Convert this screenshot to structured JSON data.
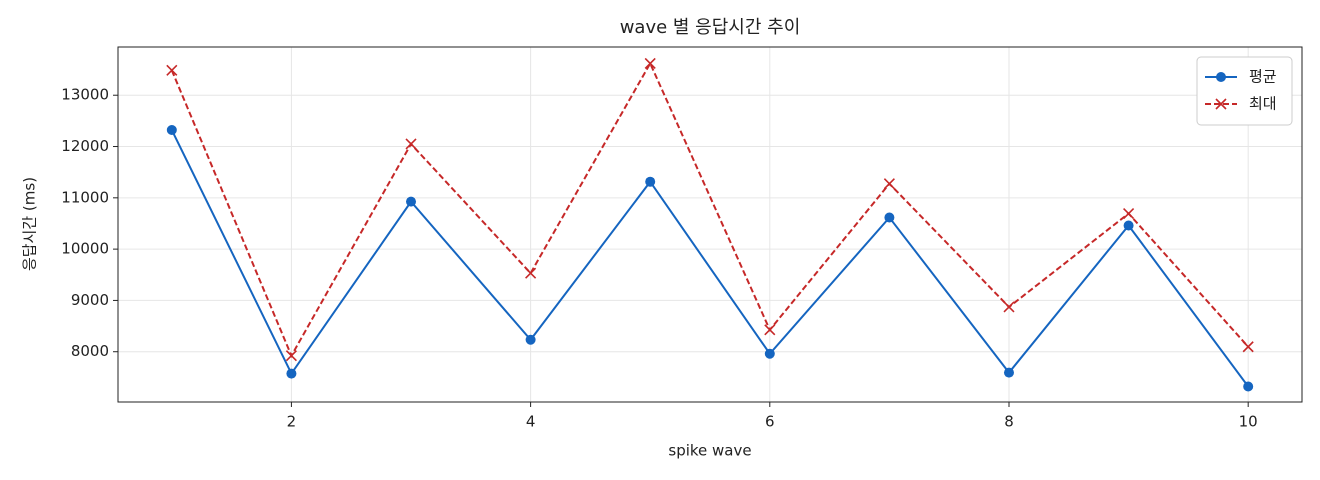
{
  "chart_data": {
    "type": "line",
    "title": "wave 별 응답시간 추이",
    "x_label": "spike wave",
    "y_label": "응답시간 (ms)",
    "x": [
      1,
      2,
      3,
      4,
      5,
      6,
      7,
      8,
      9,
      10
    ],
    "series": [
      {
        "name": "평균",
        "color": "#1565c0",
        "linestyle": "solid",
        "marker": "o",
        "values": [
          12322,
          7574,
          10926,
          8233,
          11314,
          7961,
          10616,
          7593,
          10461,
          7322
        ]
      },
      {
        "name": "최대",
        "color": "#c62828",
        "linestyle": "dashed",
        "marker": "x",
        "values": [
          13485,
          7922,
          12050,
          9531,
          13620,
          8426,
          11275,
          8872,
          10694,
          8097
        ]
      }
    ],
    "xlim": [
      0.55,
      10.45
    ],
    "xticks": [
      2,
      4,
      6,
      8,
      10
    ],
    "ylim": [
      7020,
      13940
    ],
    "yticks": [
      8000,
      9000,
      10000,
      11000,
      12000,
      13000
    ],
    "grid": true,
    "legend": "upper right"
  }
}
